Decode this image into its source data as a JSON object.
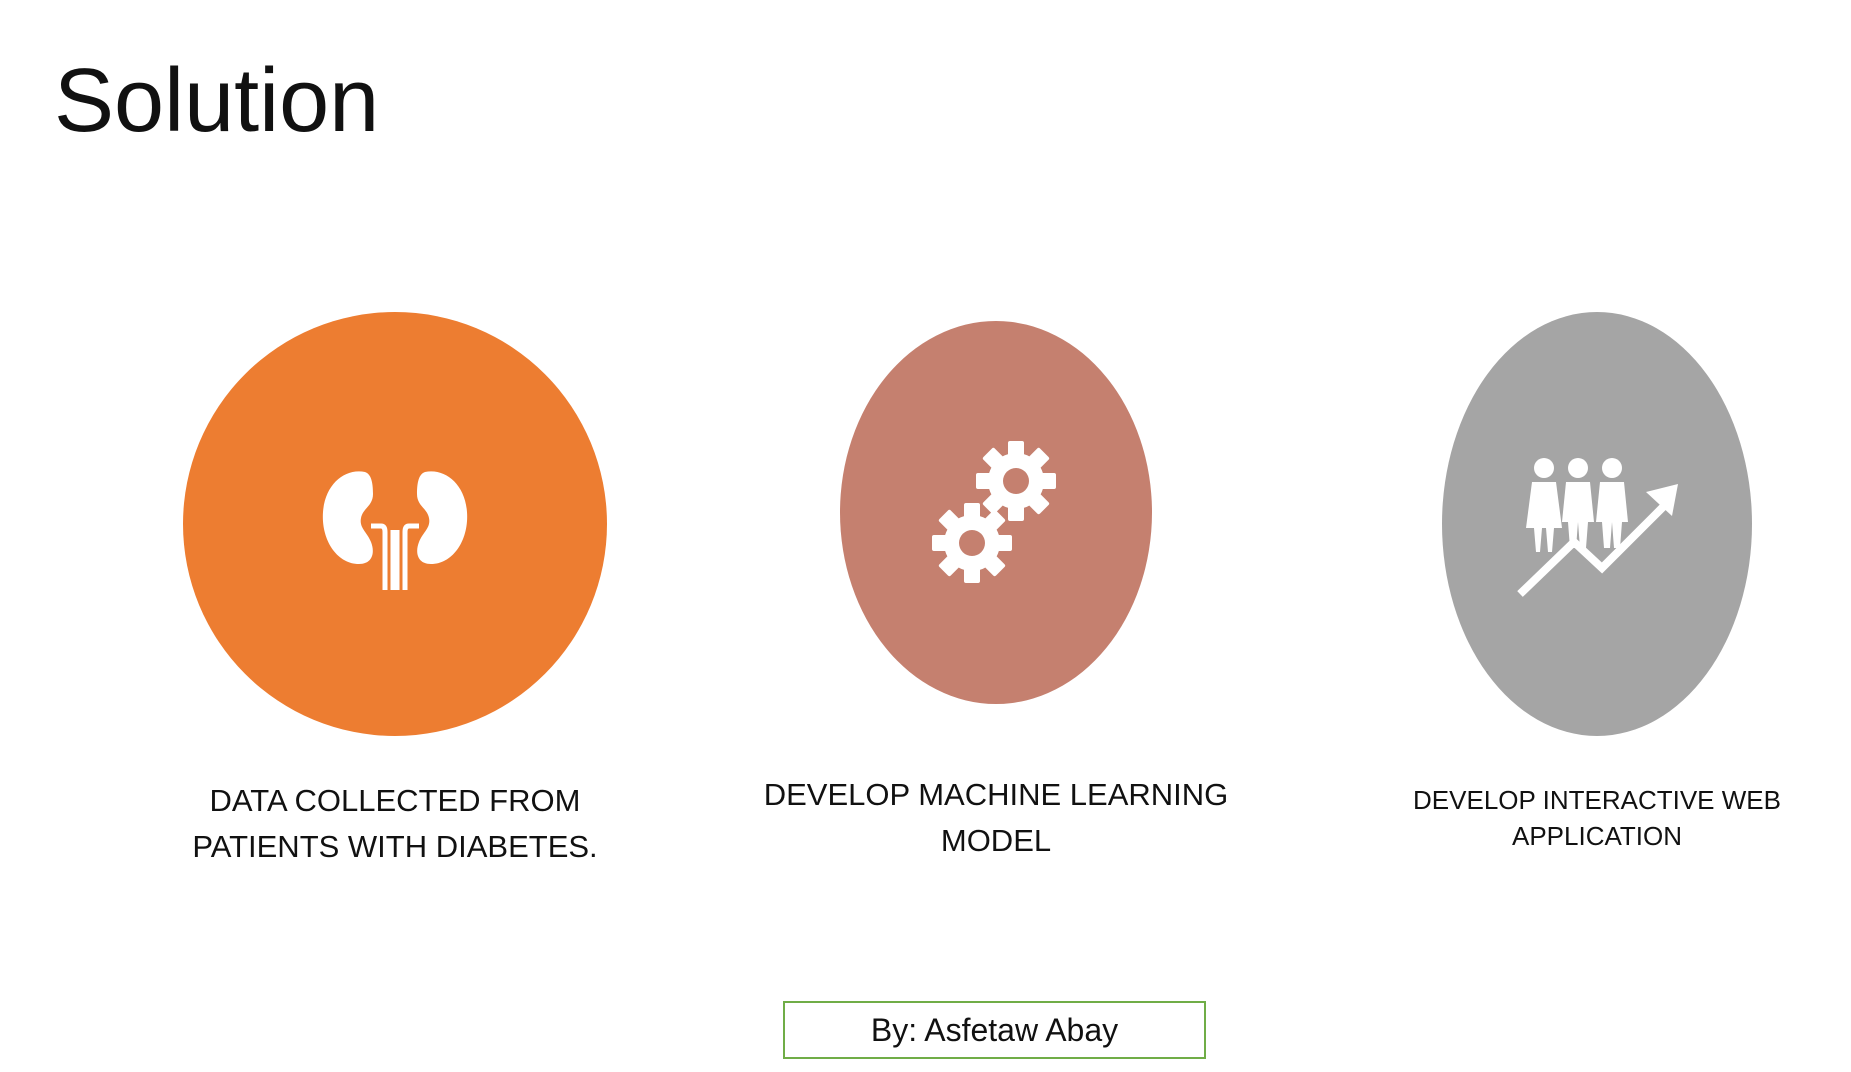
{
  "slide": {
    "title": "Solution",
    "items": [
      {
        "icon": "kidney-icon",
        "color": "#ED7D31",
        "caption_line1": "DATA COLLECTED FROM",
        "caption_line2": "PATIENTS WITH DIABETES."
      },
      {
        "icon": "gears-icon",
        "color": "#C5806F",
        "caption_line1": "DEVELOP  MACHINE LEARNING",
        "caption_line2": "MODEL"
      },
      {
        "icon": "people-growth-icon",
        "color": "#A5A5A5",
        "caption_line1": "DEVELOP INTERACTIVE WEB",
        "caption_line2": "APPLICATION"
      }
    ],
    "author": "By: Asfetaw Abay",
    "author_border_color": "#70AD47"
  }
}
